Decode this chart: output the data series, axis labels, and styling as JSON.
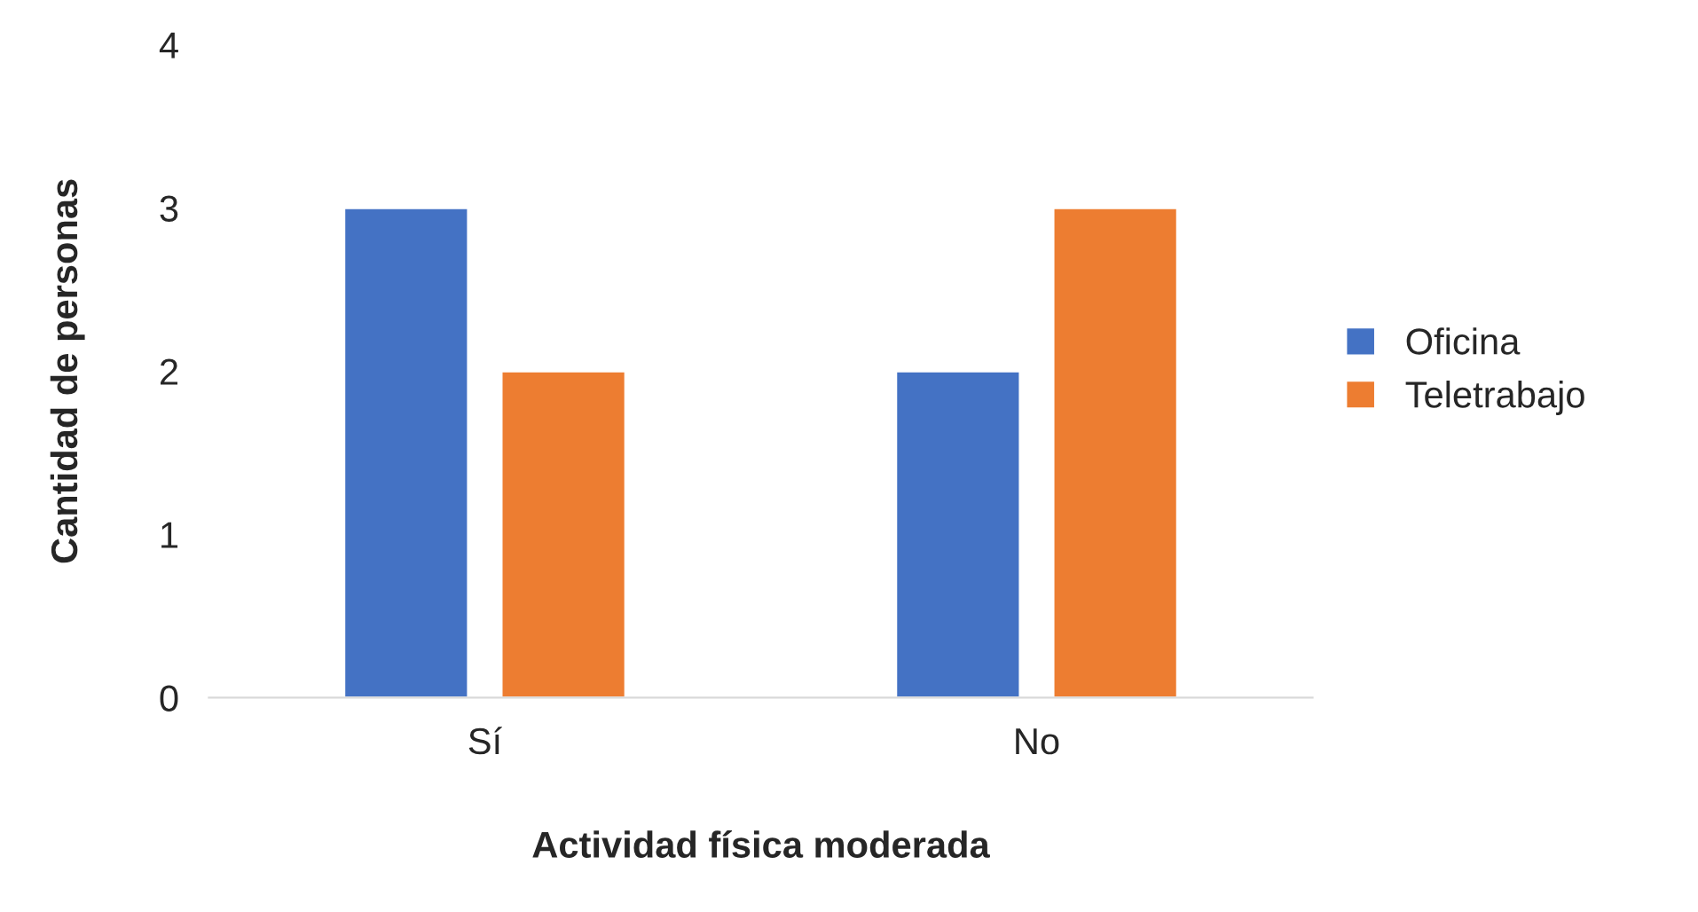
{
  "chart_data": {
    "type": "bar",
    "xlabel": "Actividad física moderada",
    "ylabel": "Cantidad de personas",
    "categories": [
      "Sí",
      "No"
    ],
    "series": [
      {
        "name": "Oficina",
        "color": "#4472c4",
        "values": [
          3,
          2
        ]
      },
      {
        "name": "Teletrabajo",
        "color": "#ed7d31",
        "values": [
          2,
          3
        ]
      }
    ],
    "ylim": [
      0,
      4
    ],
    "yticks": [
      0,
      1,
      2,
      3,
      4
    ],
    "grid": false,
    "legend": "right"
  }
}
